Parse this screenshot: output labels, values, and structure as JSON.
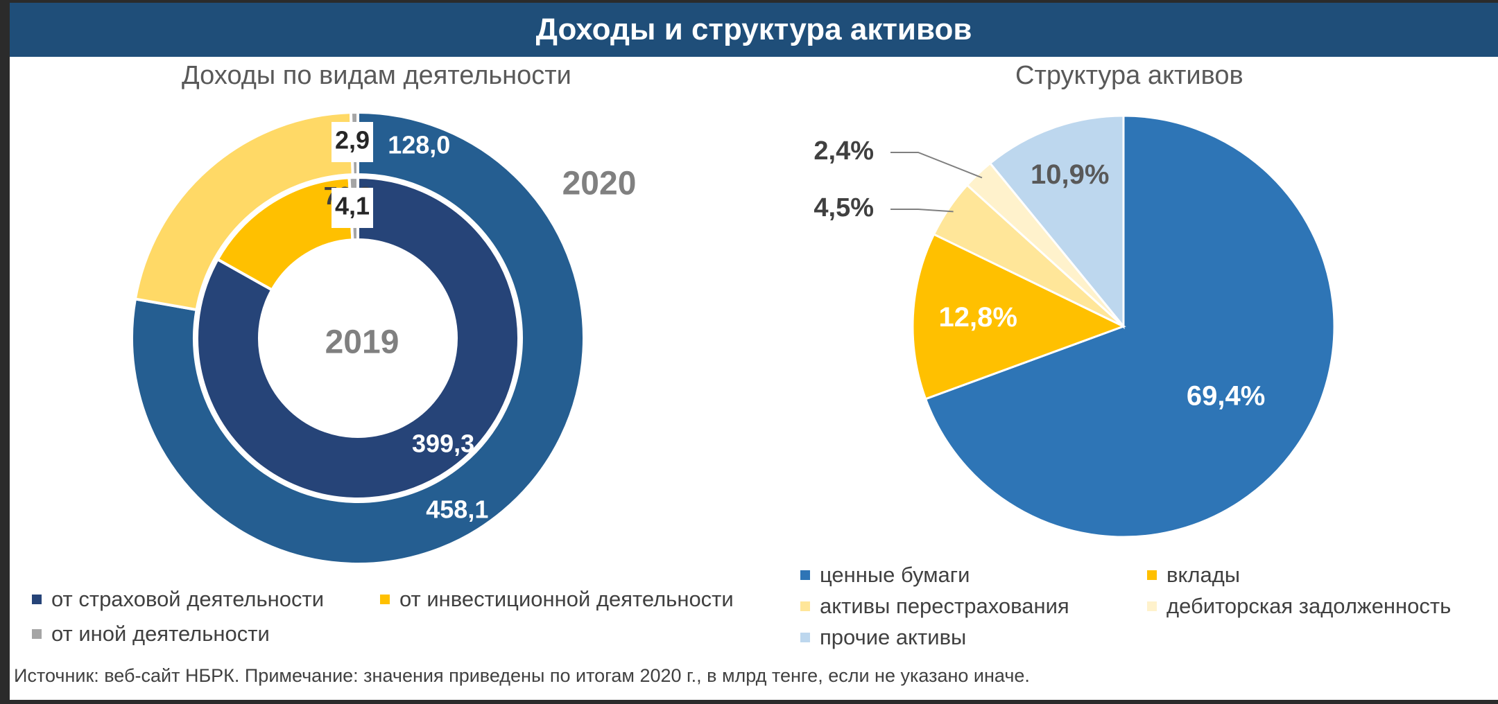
{
  "banner": {
    "title": "Доходы и структура активов"
  },
  "left_chart": {
    "subtitle": "Доходы по видам деятельности"
  },
  "right_chart": {
    "subtitle": "Структура активов"
  },
  "colors": {
    "banner": "#1f4e79",
    "insurance_2020": "#255e91",
    "insurance_2019": "#264478",
    "investment_2020": "#ffd966",
    "investment_2019": "#ffc000",
    "other": "#a5a5a5",
    "securities": "#2e75b6",
    "deposits": "#ffc000",
    "reinsurance": "#ffe699",
    "receivables": "#fff2cc",
    "other_assets": "#bdd7ee"
  },
  "chart_data": [
    {
      "type": "pie",
      "variant": "nested-donut",
      "title": "Доходы по видам деятельности",
      "categories": [
        "от страховой деятельности",
        "от инвестиционной деятельности",
        "от иной деятельности"
      ],
      "series": [
        {
          "name": "2020",
          "ring": "outer",
          "values": [
            458.1,
            128.0,
            2.9
          ],
          "labels": [
            "458,1",
            "128,0",
            "2,9"
          ]
        },
        {
          "name": "2019",
          "ring": "inner",
          "values": [
            399.3,
            76.8,
            4.1
          ],
          "labels": [
            "399,3",
            "76,8",
            "4,1"
          ]
        }
      ],
      "legend": [
        {
          "label": "от страховой деятельности",
          "color": "#264478"
        },
        {
          "label": "от инвестиционной деятельности",
          "color": "#ffc000"
        },
        {
          "label": "от иной деятельности",
          "color": "#a5a5a5"
        }
      ],
      "legend_position": "bottom"
    },
    {
      "type": "pie",
      "title": "Структура активов",
      "categories": [
        "ценные бумаги",
        "вклады",
        "активы перестрахования",
        "дебиторская задолженность",
        "прочие активы"
      ],
      "values": [
        69.4,
        12.8,
        4.5,
        2.4,
        10.9
      ],
      "labels": [
        "69,4%",
        "12,8%",
        "4,5%",
        "2,4%",
        "10,9%"
      ],
      "colors": [
        "#2e75b6",
        "#ffc000",
        "#ffe699",
        "#fff2cc",
        "#bdd7ee"
      ],
      "legend_position": "bottom"
    }
  ],
  "source_note": "Источник: веб-сайт НБРК.  Примечание: значения приведены по итогам 2020 г., в млрд тенге, если не указано иначе."
}
